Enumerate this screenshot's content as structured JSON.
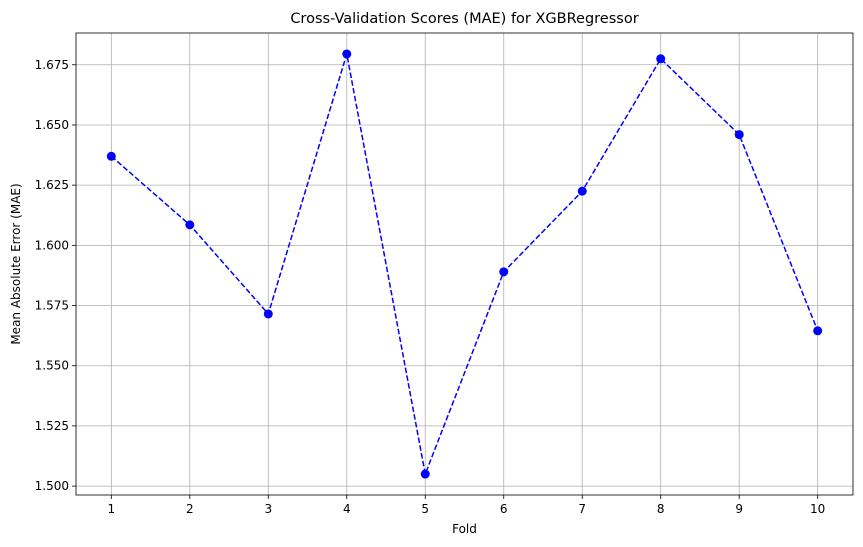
{
  "chart_data": {
    "type": "line",
    "title": "Cross-Validation Scores (MAE) for XGBRegressor",
    "xlabel": "Fold",
    "ylabel": "Mean Absolute Error (MAE)",
    "x": [
      1,
      2,
      3,
      4,
      5,
      6,
      7,
      8,
      9,
      10
    ],
    "series": [
      {
        "values": [
          1.637,
          1.6085,
          1.5715,
          1.6795,
          1.505,
          1.589,
          1.6225,
          1.6775,
          1.646,
          1.5645
        ],
        "color": "#0000ff",
        "linestyle": "dashed",
        "marker": "circle"
      }
    ],
    "xticks": [
      "1",
      "2",
      "3",
      "4",
      "5",
      "6",
      "7",
      "8",
      "9",
      "10"
    ],
    "yticks": [
      1.5,
      1.525,
      1.55,
      1.575,
      1.6,
      1.625,
      1.65,
      1.675
    ],
    "ytick_labels": [
      "1.500",
      "1.525",
      "1.550",
      "1.575",
      "1.600",
      "1.625",
      "1.650",
      "1.675"
    ],
    "xlim": [
      0.55,
      10.45
    ],
    "ylim": [
      1.4963,
      1.6882
    ],
    "grid": true,
    "legend": "none"
  }
}
